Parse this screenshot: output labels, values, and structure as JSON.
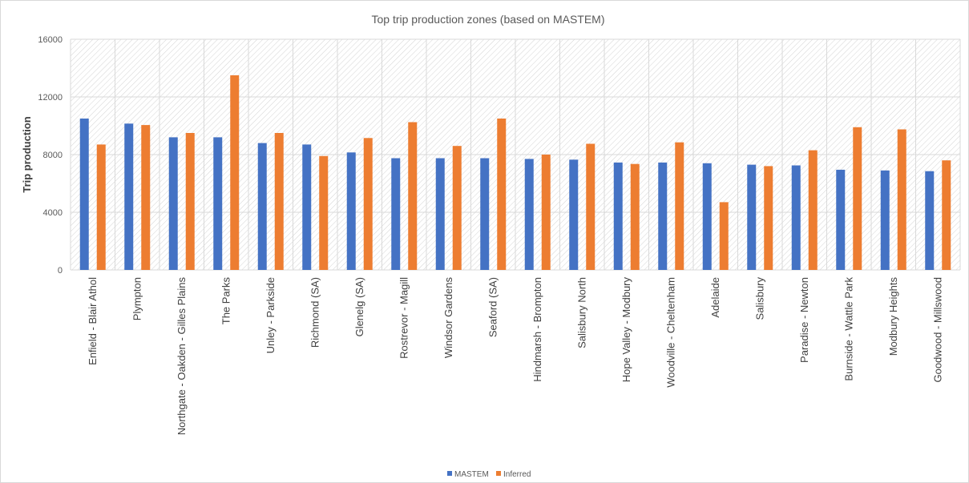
{
  "chart_data": {
    "type": "bar",
    "title": "Top trip production zones (based on MASTEM)",
    "xlabel": "",
    "ylabel": "Trip production",
    "ylim": [
      0,
      16000
    ],
    "yticks": [
      0,
      4000,
      8000,
      12000,
      16000
    ],
    "grid": true,
    "legend_position": "bottom",
    "categories": [
      "Enfield - Blair Athol",
      "Plympton",
      "Northgate - Oakden - Gilles Plains",
      "The Parks",
      "Unley - Parkside",
      "Richmond (SA)",
      "Glenelg (SA)",
      "Rostrevor - Magill",
      "Windsor Gardens",
      "Seaford (SA)",
      "Hindmarsh - Brompton",
      "Salisbury North",
      "Hope Valley - Modbury",
      "Woodville - Cheltenham",
      "Adelaide",
      "Salisbury",
      "Paradise - Newton",
      "Burnside - Wattle Park",
      "Modbury Heights",
      "Goodwood - Millswood"
    ],
    "series": [
      {
        "name": "MASTEM",
        "color": "#4472c4",
        "values": [
          10500,
          10150,
          9200,
          9200,
          8800,
          8700,
          8150,
          7750,
          7750,
          7750,
          7700,
          7650,
          7450,
          7450,
          7400,
          7300,
          7250,
          6950,
          6900,
          6850
        ]
      },
      {
        "name": "Inferred",
        "color": "#ed7d31",
        "values": [
          8700,
          10050,
          9500,
          13500,
          9500,
          7900,
          9150,
          10250,
          8600,
          10500,
          8000,
          8750,
          7350,
          8850,
          4700,
          7200,
          8300,
          9900,
          9750,
          7600
        ]
      }
    ]
  }
}
